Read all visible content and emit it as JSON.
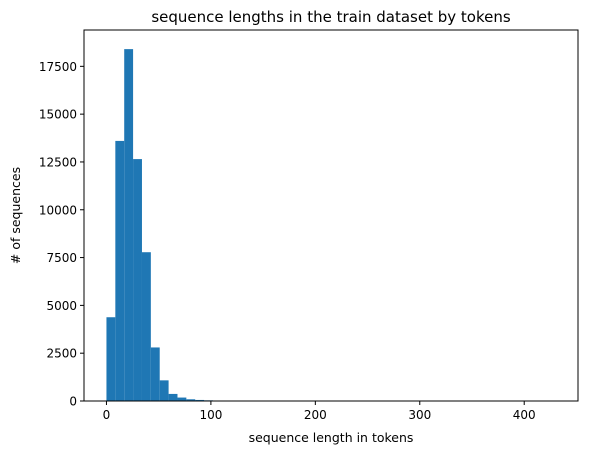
{
  "chart_data": {
    "type": "bar",
    "subtype": "histogram",
    "title": "sequence lengths in the train dataset by tokens",
    "xlabel": "sequence length in tokens",
    "ylabel": "# of sequences",
    "xlim": [
      -21.5,
      451.5
    ],
    "ylim": [
      0,
      19400
    ],
    "x_ticks": [
      0,
      100,
      200,
      300,
      400
    ],
    "y_ticks": [
      0,
      2500,
      5000,
      7500,
      10000,
      12500,
      15000,
      17500
    ],
    "bin_width": 8.5,
    "bin_start": 0,
    "bins": [
      {
        "x0": 0.0,
        "x1": 8.5,
        "count": 4380
      },
      {
        "x0": 8.5,
        "x1": 17.0,
        "count": 13600
      },
      {
        "x0": 17.0,
        "x1": 25.5,
        "count": 18400
      },
      {
        "x0": 25.5,
        "x1": 34.0,
        "count": 12650
      },
      {
        "x0": 34.0,
        "x1": 42.5,
        "count": 7780
      },
      {
        "x0": 42.5,
        "x1": 51.0,
        "count": 2800
      },
      {
        "x0": 51.0,
        "x1": 59.5,
        "count": 1080
      },
      {
        "x0": 59.5,
        "x1": 68.0,
        "count": 370
      },
      {
        "x0": 68.0,
        "x1": 76.5,
        "count": 180
      },
      {
        "x0": 76.5,
        "x1": 85.0,
        "count": 90
      },
      {
        "x0": 85.0,
        "x1": 93.5,
        "count": 55
      },
      {
        "x0": 93.5,
        "x1": 102.0,
        "count": 35
      },
      {
        "x0": 102.0,
        "x1": 110.5,
        "count": 25
      },
      {
        "x0": 110.5,
        "x1": 119.0,
        "count": 15
      },
      {
        "x0": 119.0,
        "x1": 127.5,
        "count": 8
      }
    ],
    "bar_color": "#1f77b4",
    "grid": false,
    "legend": "none"
  }
}
